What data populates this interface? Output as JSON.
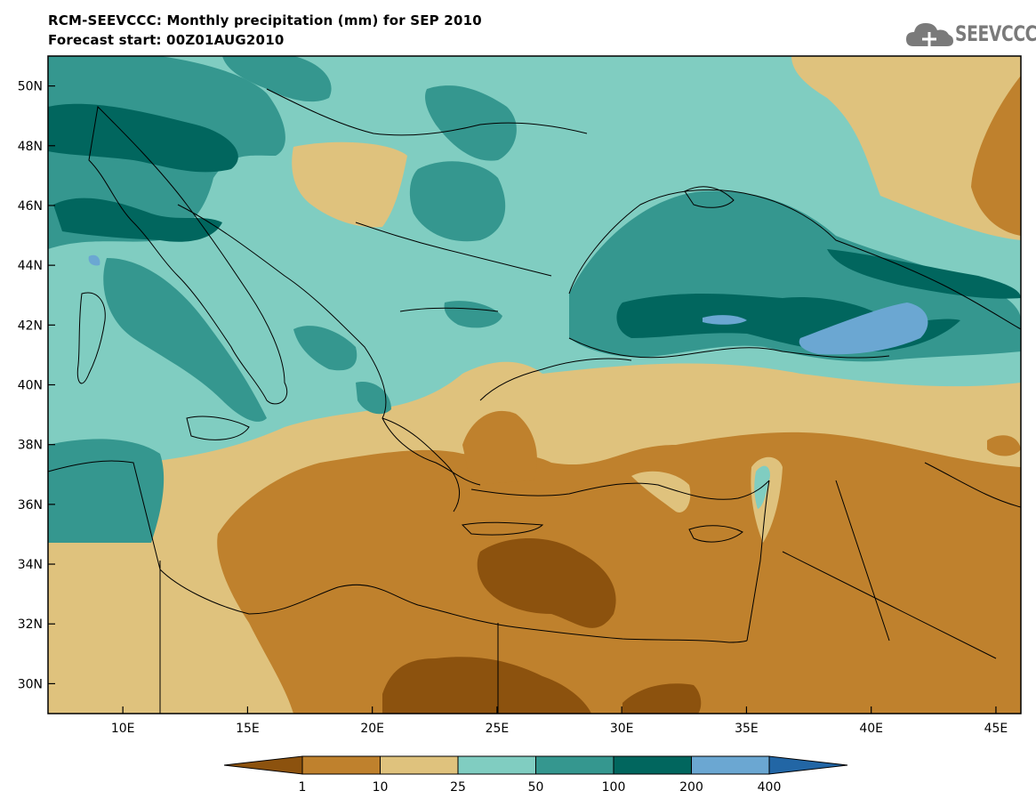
{
  "header": {
    "title": "RCM-SEEVCCC: Monthly precipitation (mm) for SEP 2010",
    "subtitle": "Forecast start: 00Z01AUG2010",
    "logo_text": "SEEVCCC",
    "logo_icon": "cloud-logo-icon"
  },
  "map": {
    "lat_labels": [
      "50N",
      "48N",
      "46N",
      "44N",
      "42N",
      "40N",
      "38N",
      "36N",
      "34N",
      "32N",
      "30N"
    ],
    "lon_labels": [
      "10E",
      "15E",
      "20E",
      "25E",
      "30E",
      "35E",
      "40E",
      "45E"
    ],
    "lon_range": [
      7,
      46
    ],
    "lat_range": [
      29,
      51
    ]
  },
  "legend": {
    "breaks": [
      "1",
      "10",
      "25",
      "50",
      "100",
      "200",
      "400"
    ],
    "colors": [
      "#8c520e",
      "#bf812d",
      "#dfc27d",
      "#80cdc1",
      "#35978f",
      "#01665e",
      "#6ba7d2",
      "#2266a5"
    ]
  }
}
